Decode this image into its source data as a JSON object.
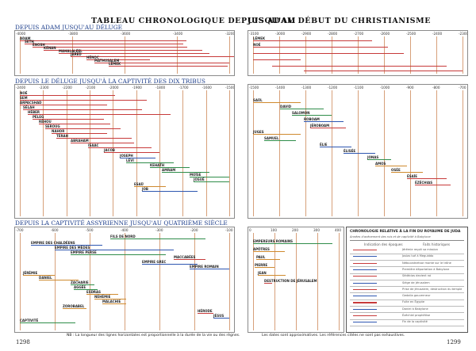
{
  "titles": {
    "left": "TABLEAU CHRONOLOGIQUE DEPUIS ADAM",
    "right": "JUSQU'AU DÉBUT DU CHRISTIANISME"
  },
  "sections": {
    "s1": "DEPUIS ADAM JUSQU'AU DÉLUGE",
    "s2": "DEPUIS LE DÉLUGE JUSQU'À LA CAPTIVITÉ DES DIX TRIBUS",
    "s3": "DEPUIS LA CAPTIVITÉ ASSYRIENNE JUSQU'AU QUATRIÈME SIÈCLE"
  },
  "axes": {
    "s1_left": [
      "-4000",
      "-3800",
      "-3600",
      "-3400",
      "-3200"
    ],
    "s1_right": [
      "-3100",
      "-3000",
      "-2900",
      "-2800",
      "-2700",
      "-2600",
      "-2500",
      "-2400",
      "-2300"
    ],
    "s2_left": [
      "-2400",
      "-2300",
      "-2200",
      "-2100",
      "-2000",
      "-1900",
      "-1800",
      "-1700",
      "-1600",
      "-1500"
    ],
    "s2_right": [
      "-1500",
      "-1400",
      "-1300",
      "-1200",
      "-1100",
      "-1000",
      "-900",
      "-800",
      "-700"
    ],
    "s3_left": [
      "-700",
      "-600",
      "-500",
      "-400",
      "-300",
      "-200",
      "-100"
    ],
    "s3_right": [
      "0",
      "100",
      "200",
      "300",
      "400"
    ]
  },
  "labels_s1": [
    "ADAM",
    "SETH",
    "ÉNOSH",
    "KÉNAN",
    "MAHALALÉEL",
    "JARED",
    "HÉNOC",
    "MATHUSALEM",
    "LÉMEK",
    "NOÉ",
    "SEM"
  ],
  "labels_s2": [
    "NOÉ",
    "SEM",
    "ARPACSHAD",
    "SÉLAH",
    "HÉBER",
    "PÉLEG",
    "RÉHOU",
    "SEROUG",
    "NAHOR",
    "TÉRAH",
    "ABRAHAM",
    "ISAAC",
    "JACOB",
    "JOSEPH",
    "LÉVI",
    "KEHATH",
    "AMRAM",
    "MOÏSE",
    "JOSUÉ",
    "ESAÜ",
    "JOB"
  ],
  "labels_s2_right": [
    "SAÜL",
    "DAVID",
    "SALOMON",
    "ROBOAM",
    "JÉROBOAM",
    "JUGES",
    "SAMUEL",
    "ÉLIE",
    "ÉLISÉE",
    "JONAS",
    "AMOS",
    "OSÉE",
    "ÉSAÏE",
    "ÉZÉCHIAS"
  ],
  "labels_s3": [
    "FILS DE NORD",
    "EMPIRE DES CHALDÉENS",
    "EMPIRE DES MÈDES",
    "EMPIRE PERSE",
    "MACCABÉES",
    "EMPIRE GREC",
    "EMPIRE ROMAIN",
    "JÉRÉMIE",
    "DANIEL",
    "ZACHARIE",
    "AGGÉE",
    "ESDRAS",
    "NÉHÉMIE",
    "MALACHIE",
    "ZOROBABEL",
    "HÉRODE",
    "JÉSUS",
    "CAPTIVITÉ"
  ],
  "labels_s3_right": [
    "EMPEREURS ROMAINS",
    "APÔTRES",
    "PAUL",
    "PIERRE",
    "JEAN",
    "DESTRUCTION DE JÉRUSALEM"
  ],
  "box": {
    "title": "CHRONOLOGIE RELATIVE À LA FIN DU ROYAUME DE JUDA",
    "subtitle": "Années d'avènement des rois et de captivité à Babylone",
    "col_header": "Indication des époques",
    "facts_header": "Faits historiques",
    "rows": [
      "Jérémie reçoit sa mission",
      "Josias tué à Meguiddo",
      "Nébucadnetsar monte sur le trône",
      "Première déportation à Babylone",
      "Sédécias devient roi",
      "Siège de Jérusalem",
      "Prise de Jérusalem, destruction du temple",
      "Gedalia gouverneur",
      "Fuite en Égypte",
      "Daniel à Babylone",
      "Ézéchiel prophétise",
      "Fin de la captivité"
    ]
  },
  "footer": {
    "page_left": "1298",
    "page_right": "1299",
    "note_left": "NB : La longueur des lignes horizontales est proportionnelle à la durée de la vie ou des règnes.",
    "note_right": "Les dates sont approximatives. Les références citées ne sont pas exhaustives."
  },
  "colors": {
    "red": "#c73a3a",
    "blue": "#2e56b0",
    "green": "#2f8d4a",
    "orange": "#cf8a2e",
    "heading": "#1e3f8c"
  }
}
